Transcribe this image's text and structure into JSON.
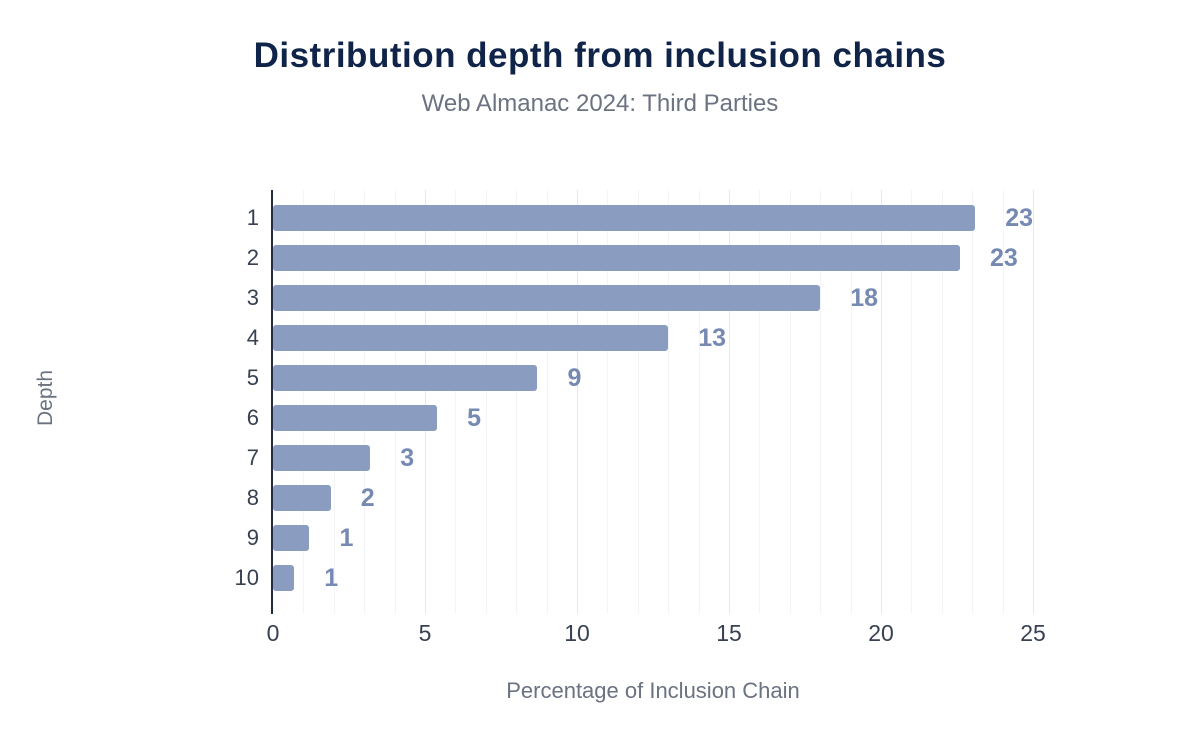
{
  "header": {
    "title": "Distribution depth from inclusion chains",
    "subtitle": "Web Almanac 2024: Third Parties"
  },
  "chart_data": {
    "type": "bar",
    "orientation": "horizontal",
    "title": "Distribution depth from inclusion chains",
    "subtitle": "Web Almanac 2024: Third Parties",
    "xlabel": "Percentage of Inclusion Chain",
    "ylabel": "Depth",
    "categories": [
      "1",
      "2",
      "3",
      "4",
      "5",
      "6",
      "7",
      "8",
      "9",
      "10"
    ],
    "values": [
      23.2,
      22.6,
      18.0,
      13.0,
      8.7,
      5.4,
      3.2,
      1.9,
      1.2,
      0.7
    ],
    "value_labels": [
      "23",
      "23",
      "18",
      "13",
      "9",
      "5",
      "3",
      "2",
      "1",
      "1"
    ],
    "xlim": [
      0,
      25
    ],
    "x_ticks": [
      "0",
      "5",
      "10",
      "15",
      "20",
      "25"
    ],
    "grid": true,
    "legend": "none",
    "colors": {
      "bar": "#8a9cc0",
      "value_label": "#7589b2",
      "title": "#0f2448",
      "subtitle": "#6b7280",
      "tick_label": "#374151",
      "gridline_major": "#e3e7ee",
      "axis_line": "#222c3e",
      "background": "#ffffff"
    }
  }
}
